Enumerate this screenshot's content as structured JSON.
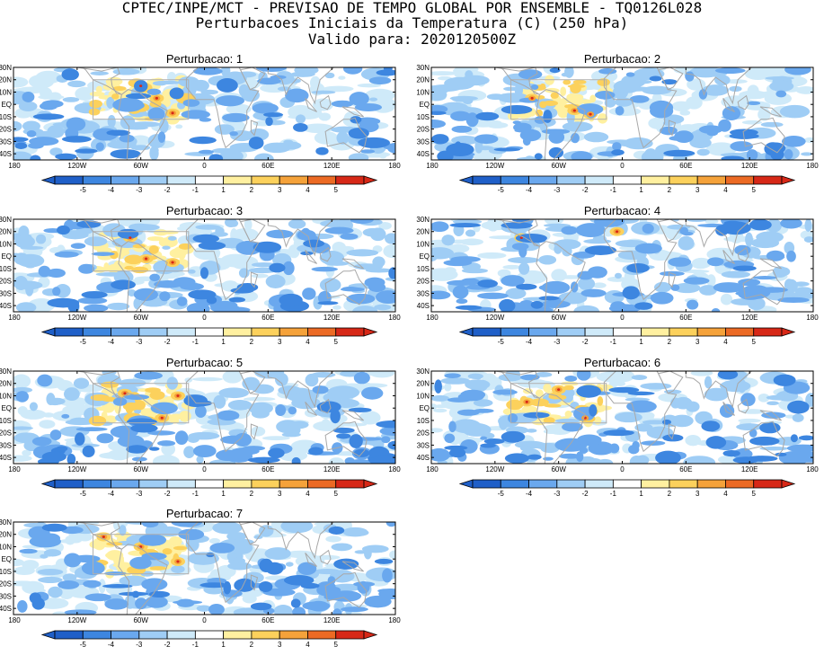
{
  "header": {
    "line1": "CPTEC/INPE/MCT - PREVISAO DE TEMPO GLOBAL POR ENSEMBLE - TQ0126L028",
    "line2": "Perturbacoes Iniciais da Temperatura (C) (250 hPa)",
    "line3": "Valido para: 2020120500Z"
  },
  "colors": {
    "-5": "#1f5fc8",
    "-4": "#3d86e0",
    "-3": "#6aa8ee",
    "-2": "#9fcdf5",
    "-1": "#cfeaf9",
    "0": "#ffffff",
    "1": "#fff0a0",
    "2": "#fcd15c",
    "3": "#f5a23a",
    "4": "#ec6a24",
    "5": "#d72817",
    "coast": "#a8a8a8",
    "box": "#b0b0b0"
  },
  "chart_data": [
    {
      "type": "heatmap",
      "title": "Perturbacao: 1",
      "variable": "Temperature perturbation (C), 250 hPa",
      "xlim": [
        -180,
        180
      ],
      "ylim": [
        -45,
        30
      ],
      "x_ticks": [
        "180",
        "120W",
        "60W",
        "0",
        "60E",
        "120E",
        "180"
      ],
      "y_ticks": [
        "30N",
        "20N",
        "10N",
        "EQ",
        "10S",
        "20S",
        "30S",
        "40S"
      ],
      "colorbar": {
        "ticks": [
          -5,
          -4,
          -3,
          -2,
          -1,
          1,
          2,
          3,
          4,
          5
        ]
      },
      "box": {
        "lon": [
          -105,
          -15
        ],
        "lat": [
          -12,
          20
        ]
      },
      "seed": 11,
      "warm_spots": [
        [
          -30,
          -7
        ],
        [
          -60,
          15
        ],
        [
          -45,
          5
        ]
      ]
    },
    {
      "type": "heatmap",
      "title": "Perturbacao: 2",
      "variable": "Temperature perturbation (C), 250 hPa",
      "xlim": [
        -180,
        180
      ],
      "ylim": [
        -45,
        30
      ],
      "x_ticks": [
        "180",
        "120W",
        "60W",
        "0",
        "60E",
        "120E",
        "180"
      ],
      "y_ticks": [
        "30N",
        "20N",
        "10N",
        "EQ",
        "10S",
        "20S",
        "30S",
        "40S"
      ],
      "colorbar": {
        "ticks": [
          -5,
          -4,
          -3,
          -2,
          -1,
          1,
          2,
          3,
          4,
          5
        ]
      },
      "box": {
        "lon": [
          -105,
          -15
        ],
        "lat": [
          -12,
          20
        ]
      },
      "seed": 23,
      "warm_spots": [
        [
          -45,
          -5
        ],
        [
          -30,
          -8
        ],
        [
          -85,
          5
        ]
      ]
    },
    {
      "type": "heatmap",
      "title": "Perturbacao: 3",
      "variable": "Temperature perturbation (C), 250 hPa",
      "xlim": [
        -180,
        180
      ],
      "ylim": [
        -45,
        30
      ],
      "x_ticks": [
        "180",
        "120W",
        "60W",
        "0",
        "60E",
        "120E",
        "180"
      ],
      "y_ticks": [
        "30N",
        "20N",
        "10N",
        "EQ",
        "10S",
        "20S",
        "30S",
        "40S"
      ],
      "colorbar": {
        "ticks": [
          -5,
          -4,
          -3,
          -2,
          -1,
          1,
          2,
          3,
          4,
          5
        ]
      },
      "box": {
        "lon": [
          -105,
          -15
        ],
        "lat": [
          -12,
          20
        ]
      },
      "seed": 37,
      "warm_spots": [
        [
          -30,
          -5
        ],
        [
          -70,
          15
        ],
        [
          -55,
          -2
        ]
      ]
    },
    {
      "type": "heatmap",
      "title": "Perturbacao: 4",
      "variable": "Temperature perturbation (C), 250 hPa",
      "xlim": [
        -180,
        180
      ],
      "ylim": [
        -45,
        30
      ],
      "x_ticks": [
        "180",
        "120W",
        "60W",
        "0",
        "60E",
        "120E",
        "180"
      ],
      "y_ticks": [
        "30N",
        "20N",
        "10N",
        "EQ",
        "10S",
        "20S",
        "30S",
        "40S"
      ],
      "colorbar": {
        "ticks": [
          -5,
          -4,
          -3,
          -2,
          -1,
          1,
          2,
          3,
          4,
          5
        ]
      },
      "box": null,
      "seed": 41,
      "warm_spots": [
        [
          -95,
          15
        ],
        [
          -5,
          20
        ]
      ]
    },
    {
      "type": "heatmap",
      "title": "Perturbacao: 5",
      "variable": "Temperature perturbation (C), 250 hPa",
      "xlim": [
        -180,
        180
      ],
      "ylim": [
        -45,
        30
      ],
      "x_ticks": [
        "180",
        "120W",
        "60W",
        "0",
        "60E",
        "120E",
        "180"
      ],
      "y_ticks": [
        "30N",
        "20N",
        "10N",
        "EQ",
        "10S",
        "20S",
        "30S",
        "40S"
      ],
      "colorbar": {
        "ticks": [
          -5,
          -4,
          -3,
          -2,
          -1,
          1,
          2,
          3,
          4,
          5
        ]
      },
      "box": {
        "lon": [
          -105,
          -15
        ],
        "lat": [
          -12,
          20
        ]
      },
      "seed": 53,
      "warm_spots": [
        [
          -25,
          10
        ],
        [
          -40,
          -8
        ],
        [
          -75,
          12
        ]
      ]
    },
    {
      "type": "heatmap",
      "title": "Perturbacao: 6",
      "variable": "Temperature perturbation (C), 250 hPa",
      "xlim": [
        -180,
        180
      ],
      "ylim": [
        -45,
        30
      ],
      "x_ticks": [
        "180",
        "120W",
        "60W",
        "0",
        "60E",
        "120E",
        "180"
      ],
      "y_ticks": [
        "30N",
        "20N",
        "10N",
        "EQ",
        "10S",
        "20S",
        "30S",
        "40S"
      ],
      "colorbar": {
        "ticks": [
          -5,
          -4,
          -3,
          -2,
          -1,
          1,
          2,
          3,
          4,
          5
        ]
      },
      "box": {
        "lon": [
          -105,
          -15
        ],
        "lat": [
          -12,
          20
        ]
      },
      "seed": 67,
      "warm_spots": [
        [
          -35,
          -8
        ],
        [
          -90,
          5
        ],
        [
          -60,
          15
        ]
      ]
    },
    {
      "type": "heatmap",
      "title": "Perturbacao: 7",
      "variable": "Temperature perturbation (C), 250 hPa",
      "xlim": [
        -180,
        180
      ],
      "ylim": [
        -45,
        30
      ],
      "x_ticks": [
        "180",
        "120W",
        "60W",
        "0",
        "60E",
        "120E",
        "180"
      ],
      "y_ticks": [
        "30N",
        "20N",
        "10N",
        "EQ",
        "10S",
        "20S",
        "30S",
        "40S"
      ],
      "colorbar": {
        "ticks": [
          -5,
          -4,
          -3,
          -2,
          -1,
          1,
          2,
          3,
          4,
          5
        ]
      },
      "box": {
        "lon": [
          -105,
          -15
        ],
        "lat": [
          -12,
          20
        ]
      },
      "seed": 79,
      "warm_spots": [
        [
          -95,
          18
        ],
        [
          -25,
          -2
        ],
        [
          -60,
          10
        ]
      ]
    }
  ]
}
